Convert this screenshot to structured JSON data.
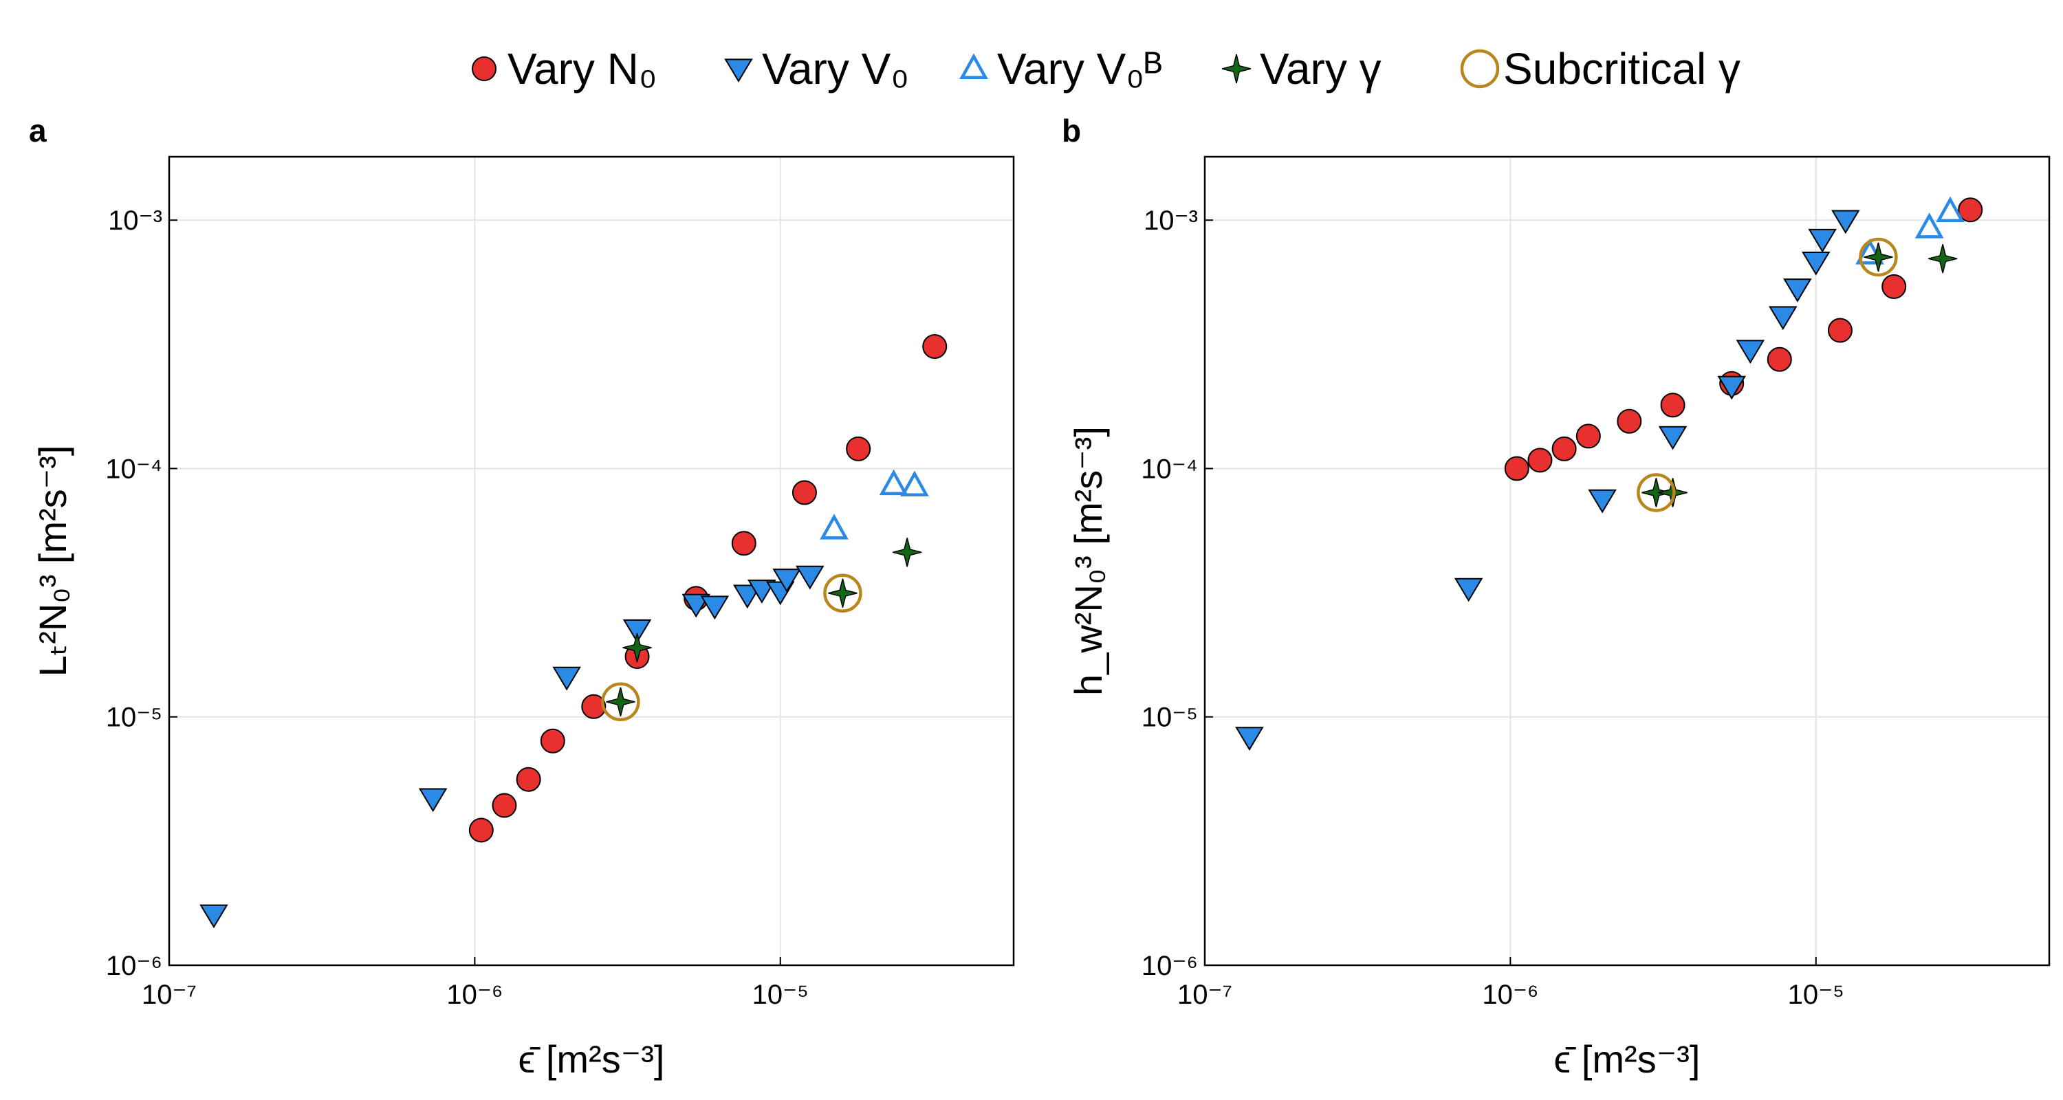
{
  "colors": {
    "vary_N0": "#e8302f",
    "vary_V0": "#2a8ae6",
    "vary_V0B": "#2a8ae6",
    "vary_gamma": "#136613",
    "subcritical": "#b8861a"
  },
  "legend": [
    {
      "key": "vary_N0",
      "marker": "circle",
      "label": "Vary N₀"
    },
    {
      "key": "vary_V0",
      "marker": "triangle-down",
      "label": "Vary V₀"
    },
    {
      "key": "vary_V0B",
      "marker": "triangle-up-open",
      "label": "Vary V₀ᴮ"
    },
    {
      "key": "vary_gamma",
      "marker": "star4",
      "label": "Vary γ"
    },
    {
      "key": "subcritical",
      "marker": "circle-open",
      "label": "Subcritical γ"
    }
  ],
  "chart_data": [
    {
      "type": "scatter",
      "panel_label": "a",
      "xlabel": "ϵ̄ [m²s⁻³]",
      "ylabel": "Lₜ²N₀³ [m²s⁻³]",
      "xscale": "log",
      "yscale": "log",
      "xlim": [
        1e-07,
        5.8e-05
      ],
      "ylim": [
        1e-06,
        0.0018
      ],
      "xticks": [
        1e-07,
        1e-06,
        1e-05
      ],
      "yticks": [
        1e-06,
        1e-05,
        0.0001,
        0.001
      ],
      "grid": true,
      "series": [
        {
          "name": "Vary N₀",
          "key": "vary_N0",
          "marker": "circle",
          "x": [
            1.05e-06,
            1.25e-06,
            1.5e-06,
            1.8e-06,
            2.45e-06,
            3.4e-06,
            5.3e-06,
            7.6e-06,
            1.2e-05,
            1.8e-05,
            3.2e-05
          ],
          "y": [
            3.5e-06,
            4.4e-06,
            5.6e-06,
            8e-06,
            1.1e-05,
            1.75e-05,
            3e-05,
            5e-05,
            8e-05,
            0.00012,
            0.00031
          ]
        },
        {
          "name": "Vary V₀",
          "key": "vary_V0",
          "marker": "triangle-down",
          "x": [
            1.4e-07,
            7.3e-07,
            2e-06,
            3.4e-06,
            5.3e-06,
            6.1e-06,
            7.8e-06,
            8.7e-06,
            1e-05,
            1.05e-05,
            1.25e-05
          ],
          "y": [
            1.6e-06,
            4.7e-06,
            1.45e-05,
            2.25e-05,
            2.85e-05,
            2.8e-05,
            3.1e-05,
            3.25e-05,
            3.2e-05,
            3.6e-05,
            3.7e-05
          ]
        },
        {
          "name": "Vary V₀ᴮ",
          "key": "vary_V0B",
          "marker": "triangle-up-open",
          "x": [
            1.5e-05,
            2.35e-05,
            2.75e-05
          ],
          "y": [
            5.7e-05,
            8.6e-05,
            8.5e-05
          ]
        },
        {
          "name": "Vary γ",
          "key": "vary_gamma",
          "marker": "star4",
          "x": [
            3e-06,
            3.4e-06,
            1.6e-05,
            2.6e-05
          ],
          "y": [
            1.15e-05,
            1.9e-05,
            3.15e-05,
            4.6e-05
          ]
        },
        {
          "name": "Subcritical γ",
          "key": "subcritical",
          "marker": "circle-open",
          "x": [
            3e-06,
            1.6e-05
          ],
          "y": [
            1.15e-05,
            3.15e-05
          ]
        }
      ]
    },
    {
      "type": "scatter",
      "panel_label": "b",
      "xlabel": "ϵ̄ [m²s⁻³]",
      "ylabel": "h_w²N₀³ [m²s⁻³]",
      "xscale": "log",
      "yscale": "log",
      "xlim": [
        1e-07,
        5.8e-05
      ],
      "ylim": [
        1e-06,
        0.0018
      ],
      "xticks": [
        1e-07,
        1e-06,
        1e-05
      ],
      "yticks": [
        1e-06,
        1e-05,
        0.0001,
        0.001
      ],
      "grid": true,
      "series": [
        {
          "name": "Vary N₀",
          "key": "vary_N0",
          "marker": "circle",
          "x": [
            1.05e-06,
            1.25e-06,
            1.5e-06,
            1.8e-06,
            2.45e-06,
            3.4e-06,
            5.3e-06,
            7.6e-06,
            1.2e-05,
            1.8e-05,
            3.2e-05
          ],
          "y": [
            0.0001,
            0.000108,
            0.00012,
            0.000135,
            0.000155,
            0.00018,
            0.00022,
            0.000275,
            0.00036,
            0.00054,
            0.0011
          ]
        },
        {
          "name": "Vary V₀",
          "key": "vary_V0",
          "marker": "triangle-down",
          "x": [
            1.4e-07,
            7.3e-07,
            2e-06,
            3.4e-06,
            5.3e-06,
            6.1e-06,
            7.8e-06,
            8.7e-06,
            1e-05,
            1.05e-05,
            1.25e-05
          ],
          "y": [
            8.3e-06,
            3.3e-05,
            7.5e-05,
            0.000135,
            0.000215,
            0.0003,
            0.00041,
            0.00053,
            0.00068,
            0.00084,
            0.001
          ]
        },
        {
          "name": "Vary V₀ᴮ",
          "key": "vary_V0B",
          "marker": "triangle-up-open",
          "x": [
            1.5e-05,
            2.35e-05,
            2.75e-05
          ],
          "y": [
            0.00073,
            0.00093,
            0.00108
          ]
        },
        {
          "name": "Vary γ",
          "key": "vary_gamma",
          "marker": "star4",
          "x": [
            3e-06,
            3.4e-06,
            1.6e-05,
            2.6e-05
          ],
          "y": [
            8e-05,
            8e-05,
            0.00071,
            0.0007
          ]
        },
        {
          "name": "Subcritical γ",
          "key": "subcritical",
          "marker": "circle-open",
          "x": [
            3e-06,
            1.6e-05
          ],
          "y": [
            8e-05,
            0.00071
          ]
        }
      ]
    }
  ]
}
